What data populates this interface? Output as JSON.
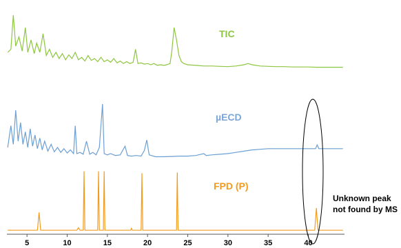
{
  "chart_data": {
    "type": "line",
    "xlabel": "",
    "ylabel": "",
    "xlim": [
      2.5,
      44.5
    ],
    "xticks": [
      "5",
      "10",
      "15",
      "20",
      "25",
      "30",
      "35",
      "40"
    ],
    "grid": false,
    "series": [
      {
        "name": "TIC",
        "color": "#8dc63f",
        "label_color": "#8dc63f",
        "points": [
          [
            2.6,
            0.3
          ],
          [
            3.0,
            0.35
          ],
          [
            3.3,
            0.9
          ],
          [
            3.6,
            0.4
          ],
          [
            4.0,
            0.55
          ],
          [
            4.4,
            0.32
          ],
          [
            4.8,
            0.7
          ],
          [
            5.1,
            0.3
          ],
          [
            5.5,
            0.5
          ],
          [
            5.9,
            0.28
          ],
          [
            6.2,
            0.45
          ],
          [
            6.6,
            0.3
          ],
          [
            7.0,
            0.6
          ],
          [
            7.4,
            0.25
          ],
          [
            7.8,
            0.35
          ],
          [
            8.2,
            0.22
          ],
          [
            8.6,
            0.3
          ],
          [
            9.0,
            0.2
          ],
          [
            9.4,
            0.28
          ],
          [
            9.8,
            0.18
          ],
          [
            10.2,
            0.26
          ],
          [
            10.6,
            0.2
          ],
          [
            11.0,
            0.3
          ],
          [
            11.4,
            0.18
          ],
          [
            11.8,
            0.22
          ],
          [
            12.2,
            0.16
          ],
          [
            12.6,
            0.25
          ],
          [
            13.0,
            0.17
          ],
          [
            13.4,
            0.2
          ],
          [
            13.8,
            0.15
          ],
          [
            14.2,
            0.22
          ],
          [
            14.6,
            0.15
          ],
          [
            15.0,
            0.18
          ],
          [
            15.4,
            0.14
          ],
          [
            15.8,
            0.2
          ],
          [
            16.2,
            0.13
          ],
          [
            16.6,
            0.16
          ],
          [
            17.0,
            0.12
          ],
          [
            17.4,
            0.15
          ],
          [
            17.8,
            0.12
          ],
          [
            18.2,
            0.14
          ],
          [
            18.5,
            0.35
          ],
          [
            18.8,
            0.12
          ],
          [
            19.2,
            0.13
          ],
          [
            19.6,
            0.11
          ],
          [
            20.0,
            0.12
          ],
          [
            20.4,
            0.1
          ],
          [
            20.8,
            0.12
          ],
          [
            21.2,
            0.09
          ],
          [
            21.6,
            0.1
          ],
          [
            22.0,
            0.09
          ],
          [
            22.4,
            0.1
          ],
          [
            22.8,
            0.12
          ],
          [
            23.0,
            0.3
          ],
          [
            23.3,
            0.7
          ],
          [
            23.6,
            0.5
          ],
          [
            23.9,
            0.25
          ],
          [
            24.2,
            0.15
          ],
          [
            24.5,
            0.12
          ],
          [
            25.0,
            0.1
          ],
          [
            26.0,
            0.09
          ],
          [
            27.0,
            0.08
          ],
          [
            28.0,
            0.08
          ],
          [
            29.0,
            0.075
          ],
          [
            30.0,
            0.07
          ],
          [
            31.0,
            0.08
          ],
          [
            32.0,
            0.1
          ],
          [
            32.5,
            0.12
          ],
          [
            33.0,
            0.1
          ],
          [
            34.0,
            0.08
          ],
          [
            35.0,
            0.075
          ],
          [
            36.0,
            0.07
          ],
          [
            37.0,
            0.07
          ],
          [
            38.0,
            0.065
          ],
          [
            39.0,
            0.065
          ],
          [
            40.0,
            0.065
          ],
          [
            41.0,
            0.06
          ],
          [
            42.0,
            0.06
          ],
          [
            43.0,
            0.06
          ],
          [
            44.3,
            0.06
          ]
        ]
      },
      {
        "name": "µECD",
        "color": "#6a9fd4",
        "label_color": "#7aa6d8",
        "points": [
          [
            2.6,
            0.2
          ],
          [
            3.0,
            0.55
          ],
          [
            3.3,
            0.25
          ],
          [
            3.6,
            0.8
          ],
          [
            3.9,
            0.3
          ],
          [
            4.2,
            0.6
          ],
          [
            4.5,
            0.25
          ],
          [
            4.8,
            0.45
          ],
          [
            5.1,
            0.2
          ],
          [
            5.4,
            0.5
          ],
          [
            5.7,
            0.22
          ],
          [
            6.0,
            0.4
          ],
          [
            6.3,
            0.18
          ],
          [
            6.6,
            0.35
          ],
          [
            6.9,
            0.16
          ],
          [
            7.2,
            0.3
          ],
          [
            7.6,
            0.14
          ],
          [
            8.0,
            0.25
          ],
          [
            8.4,
            0.13
          ],
          [
            8.8,
            0.2
          ],
          [
            9.2,
            0.12
          ],
          [
            9.6,
            0.18
          ],
          [
            10.0,
            0.11
          ],
          [
            10.4,
            0.16
          ],
          [
            10.8,
            0.1
          ],
          [
            11.0,
            0.55
          ],
          [
            11.2,
            0.1
          ],
          [
            11.6,
            0.12
          ],
          [
            12.0,
            0.09
          ],
          [
            12.4,
            0.3
          ],
          [
            12.8,
            0.09
          ],
          [
            13.2,
            0.12
          ],
          [
            13.6,
            0.08
          ],
          [
            14.0,
            0.2
          ],
          [
            14.4,
            0.9
          ],
          [
            14.6,
            0.1
          ],
          [
            15.0,
            0.08
          ],
          [
            15.4,
            0.1
          ],
          [
            16.0,
            0.07
          ],
          [
            16.6,
            0.08
          ],
          [
            17.2,
            0.22
          ],
          [
            17.5,
            0.07
          ],
          [
            18.0,
            0.06
          ],
          [
            18.6,
            0.07
          ],
          [
            19.2,
            0.06
          ],
          [
            19.6,
            0.15
          ],
          [
            19.9,
            0.32
          ],
          [
            20.2,
            0.08
          ],
          [
            21.0,
            0.05
          ],
          [
            22.0,
            0.05
          ],
          [
            23.0,
            0.055
          ],
          [
            24.0,
            0.06
          ],
          [
            25.0,
            0.06
          ],
          [
            26.0,
            0.07
          ],
          [
            27.0,
            0.1
          ],
          [
            27.3,
            0.07
          ],
          [
            28.0,
            0.08
          ],
          [
            29.0,
            0.09
          ],
          [
            30.0,
            0.1
          ],
          [
            31.0,
            0.12
          ],
          [
            32.0,
            0.14
          ],
          [
            33.0,
            0.16
          ],
          [
            34.0,
            0.17
          ],
          [
            35.0,
            0.18
          ],
          [
            36.0,
            0.18
          ],
          [
            37.0,
            0.18
          ],
          [
            38.0,
            0.18
          ],
          [
            39.0,
            0.18
          ],
          [
            40.0,
            0.18
          ],
          [
            40.9,
            0.18
          ],
          [
            41.1,
            0.24
          ],
          [
            41.3,
            0.18
          ],
          [
            42.0,
            0.18
          ],
          [
            43.0,
            0.18
          ],
          [
            44.3,
            0.18
          ]
        ]
      },
      {
        "name": "FPD (P)",
        "color": "#f29b1d",
        "label_color": "#f29b1d",
        "points": [
          [
            2.6,
            0.02
          ],
          [
            6.3,
            0.02
          ],
          [
            6.5,
            0.3
          ],
          [
            6.7,
            0.02
          ],
          [
            11.2,
            0.02
          ],
          [
            11.4,
            0.06
          ],
          [
            11.6,
            0.02
          ],
          [
            12.0,
            0.02
          ],
          [
            12.1,
            0.95
          ],
          [
            12.2,
            0.02
          ],
          [
            13.8,
            0.02
          ],
          [
            13.9,
            0.95
          ],
          [
            14.0,
            0.02
          ],
          [
            14.5,
            0.02
          ],
          [
            14.6,
            0.95
          ],
          [
            14.7,
            0.02
          ],
          [
            17.9,
            0.02
          ],
          [
            18.0,
            0.05
          ],
          [
            18.1,
            0.02
          ],
          [
            19.2,
            0.02
          ],
          [
            19.3,
            0.92
          ],
          [
            19.4,
            0.02
          ],
          [
            23.6,
            0.02
          ],
          [
            23.7,
            0.93
          ],
          [
            23.8,
            0.02
          ],
          [
            40.8,
            0.02
          ],
          [
            41.0,
            0.37
          ],
          [
            41.2,
            0.02
          ],
          [
            44.3,
            0.02
          ]
        ]
      }
    ],
    "annotations": [
      {
        "text_line1": "Unknown peak",
        "text_line2": "not found by MS",
        "target_x": 41.0
      }
    ]
  }
}
